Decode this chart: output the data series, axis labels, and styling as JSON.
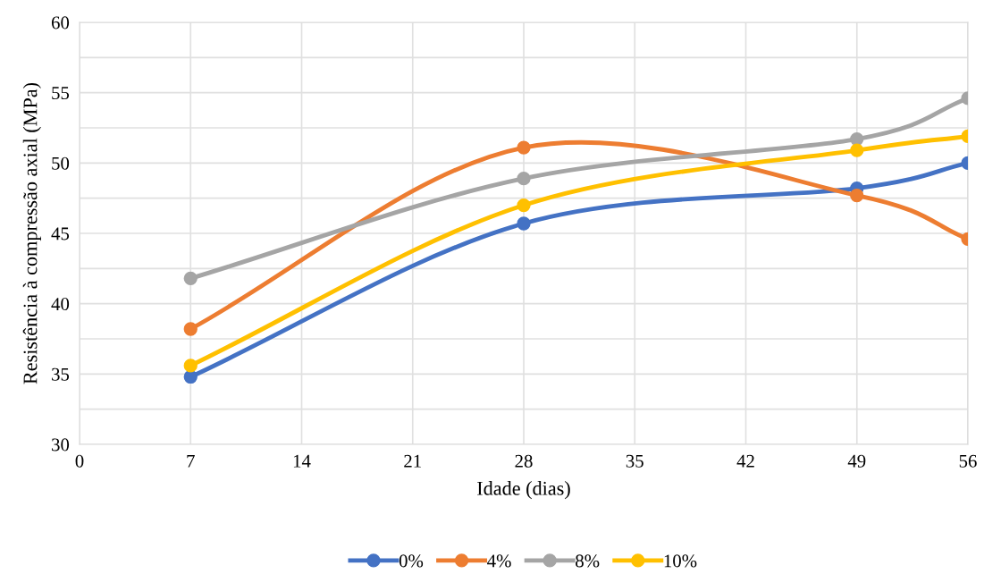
{
  "chart_data": {
    "type": "line",
    "xlabel": "Idade (dias)",
    "ylabel": "Resistência à compressão axial (MPa)",
    "x": [
      7,
      28,
      49,
      56
    ],
    "series": [
      {
        "name": "0%",
        "color": "#4472c4",
        "values": [
          34.8,
          45.7,
          48.2,
          50.0
        ]
      },
      {
        "name": "4%",
        "color": "#ed7d31",
        "values": [
          38.2,
          51.1,
          47.7,
          44.6
        ]
      },
      {
        "name": "8%",
        "color": "#a5a5a5",
        "values": [
          41.8,
          48.9,
          51.7,
          54.6
        ]
      },
      {
        "name": "10%",
        "color": "#ffc000",
        "values": [
          35.6,
          47.0,
          50.9,
          51.9
        ]
      }
    ],
    "xlim": [
      0,
      56
    ],
    "xticks": [
      0,
      7,
      14,
      21,
      28,
      35,
      42,
      49,
      56
    ],
    "ylim": [
      30,
      60
    ],
    "yticks": [
      30,
      {
        "value": 32.5,
        "label": null
      },
      35,
      {
        "value": 37.5,
        "label": null
      },
      40,
      {
        "value": 42.5,
        "label": null
      },
      45,
      {
        "value": 47.5,
        "label": null
      },
      50,
      {
        "value": 52.5,
        "label": null
      },
      55,
      {
        "value": 57.5,
        "label": null
      },
      60
    ],
    "grid": true,
    "legend": "bottom",
    "marker": "circle",
    "line_style": "solid"
  }
}
